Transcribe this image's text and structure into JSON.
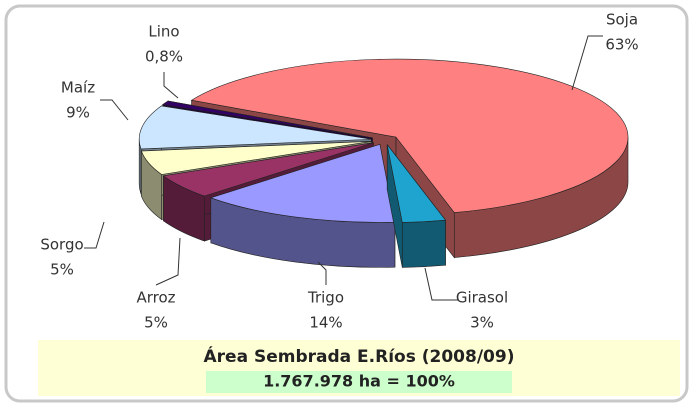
{
  "chart_data": {
    "type": "pie",
    "title": "Área Sembrada E.Ríos (2008/09)",
    "subtitle": "1.767.978 ha = 100%",
    "categories": [
      "Soja",
      "Girasol",
      "Trigo",
      "Arroz",
      "Sorgo",
      "Maíz",
      "Lino"
    ],
    "values": [
      63,
      3,
      14,
      5,
      5,
      9,
      0.8
    ],
    "value_labels": [
      "63%",
      "3%",
      "14%",
      "5%",
      "5%",
      "9%",
      "0,8%"
    ],
    "colors": [
      "#ff8080",
      "#1fa3cf",
      "#9999ff",
      "#993366",
      "#ffffcc",
      "#cce6ff",
      "#330066"
    ]
  }
}
